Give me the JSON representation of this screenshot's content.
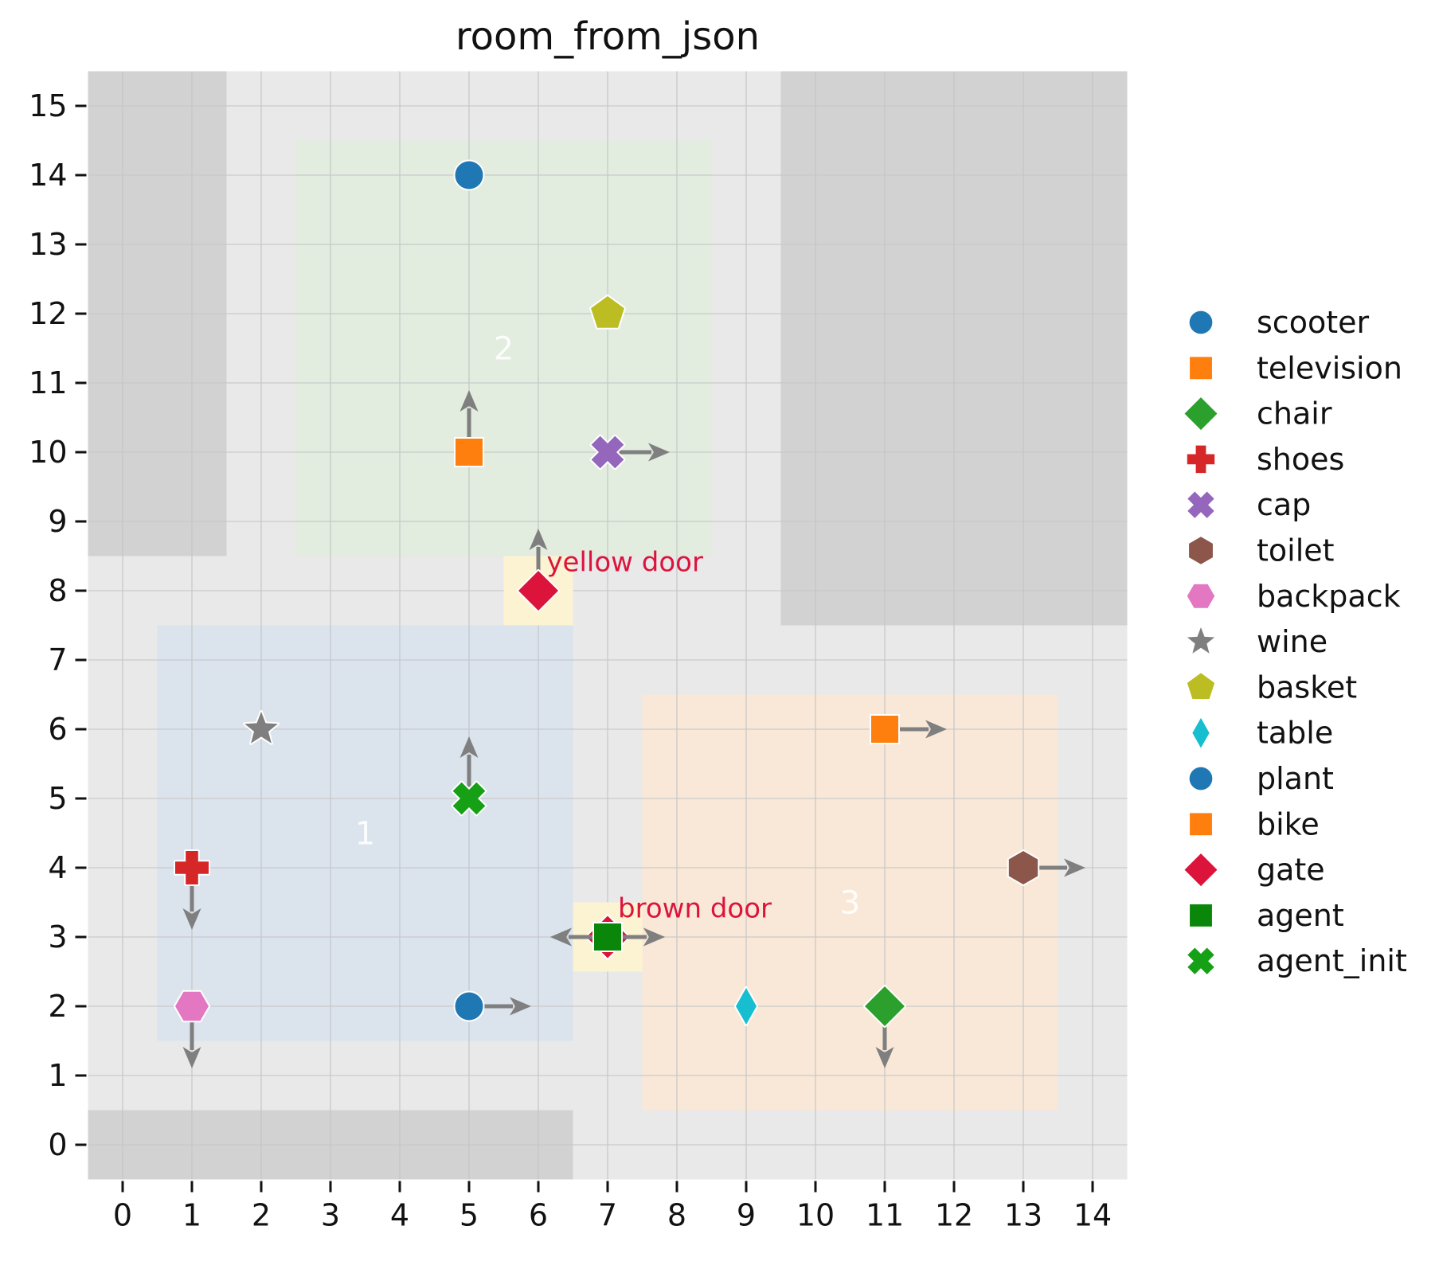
{
  "title": "room_from_json",
  "axes": {
    "xlim": [
      -0.5,
      14.5
    ],
    "ylim": [
      -0.5,
      15.5
    ],
    "xticks": [
      0,
      1,
      2,
      3,
      4,
      5,
      6,
      7,
      8,
      9,
      10,
      11,
      12,
      13,
      14
    ],
    "yticks": [
      0,
      1,
      2,
      3,
      4,
      5,
      6,
      7,
      8,
      9,
      10,
      11,
      12,
      13,
      14,
      15
    ],
    "bg_color": "#e9e9e9",
    "grid_color": "#c7c7c7",
    "tick_color": "#111111"
  },
  "chart_data": {
    "type": "scatter",
    "title": "room_from_json",
    "wall_color": "#d2d2d2",
    "door_patch_color": "#fcf3d2",
    "door_text_color": "#dc143c",
    "arrow_color": "#7f7f7f",
    "rooms": [
      {
        "id": "1",
        "x0": 0.5,
        "y0": 1.5,
        "x1": 6.5,
        "y1": 7.5,
        "color": "#dbe3ed",
        "label_x": 3.5,
        "label_y": 4.5
      },
      {
        "id": "2",
        "x0": 2.5,
        "y0": 8.5,
        "x1": 8.5,
        "y1": 14.5,
        "color": "#e2ecdf",
        "label_x": 5.5,
        "label_y": 11.5
      },
      {
        "id": "3",
        "x0": 7.5,
        "y0": 0.5,
        "x1": 13.5,
        "y1": 6.5,
        "color": "#f9e8d7",
        "label_x": 10.5,
        "label_y": 3.5
      }
    ],
    "walls": [
      {
        "x0": -0.5,
        "y0": 8.5,
        "x1": 1.5,
        "y1": 15.5
      },
      {
        "x0": 9.5,
        "y0": 7.5,
        "x1": 14.5,
        "y1": 15.5
      },
      {
        "x0": -0.5,
        "y0": -0.5,
        "x1": 6.5,
        "y1": 0.5
      }
    ],
    "doors": [
      {
        "name": "yellow door",
        "x": 6,
        "y": 8,
        "patch": [
          5.5,
          7.5,
          6.5,
          8.5
        ],
        "label_x": 6.12,
        "label_y": 8.28
      },
      {
        "name": "brown door",
        "x": 7,
        "y": 3,
        "patch": [
          6.5,
          2.5,
          7.5,
          3.5
        ],
        "label_x": 7.15,
        "label_y": 3.28
      }
    ],
    "objects": [
      {
        "name": "scooter",
        "x": 5,
        "y": 14,
        "marker": "circle",
        "color": "#1f77b4",
        "arrows": []
      },
      {
        "name": "basket",
        "x": 7,
        "y": 12,
        "marker": "pentagon",
        "color": "#bcbd22",
        "arrows": []
      },
      {
        "name": "television",
        "x": 5,
        "y": 10,
        "marker": "square",
        "color": "#ff7f0e",
        "arrows": [
          "up"
        ]
      },
      {
        "name": "cap",
        "x": 7,
        "y": 10,
        "marker": "x",
        "color": "#9467bd",
        "arrows": [
          "right"
        ]
      },
      {
        "name": "gate",
        "x": 6,
        "y": 8,
        "marker": "diamond",
        "color": "#dc143c",
        "arrows": [
          "up"
        ]
      },
      {
        "name": "wine",
        "x": 2,
        "y": 6,
        "marker": "star",
        "color": "#7f7f7f",
        "arrows": []
      },
      {
        "name": "agent_init",
        "x": 5,
        "y": 5,
        "marker": "x",
        "color": "#16a016",
        "arrows": [
          "up"
        ]
      },
      {
        "name": "shoes",
        "x": 1,
        "y": 4,
        "marker": "plus",
        "color": "#d62728",
        "arrows": [
          "down"
        ]
      },
      {
        "name": "backpack",
        "x": 1,
        "y": 2,
        "marker": "hexagon-h",
        "color": "#e377c2",
        "arrows": [
          "down"
        ]
      },
      {
        "name": "plant",
        "x": 5,
        "y": 2,
        "marker": "circle",
        "color": "#1f77b4",
        "arrows": [
          "right"
        ]
      },
      {
        "name": "agent",
        "x": 7,
        "y": 3,
        "marker": "square",
        "color": "#0a870a",
        "arrows": [
          "left",
          "right"
        ],
        "door_diamond": "#dc143c"
      },
      {
        "name": "table",
        "x": 9,
        "y": 2,
        "marker": "thin-diamond",
        "color": "#17becf",
        "arrows": []
      },
      {
        "name": "chair",
        "x": 11,
        "y": 2,
        "marker": "diamond",
        "color": "#2ca02c",
        "arrows": [
          "down"
        ]
      },
      {
        "name": "bike",
        "x": 11,
        "y": 6,
        "marker": "square",
        "color": "#ff7f0e",
        "arrows": [
          "right"
        ]
      },
      {
        "name": "toilet",
        "x": 13,
        "y": 4,
        "marker": "hexagon-v",
        "color": "#8c564b",
        "arrows": [
          "right"
        ]
      }
    ],
    "legend": [
      {
        "label": "scooter",
        "marker": "circle",
        "color": "#1f77b4"
      },
      {
        "label": "television",
        "marker": "square",
        "color": "#ff7f0e"
      },
      {
        "label": "chair",
        "marker": "diamond",
        "color": "#2ca02c"
      },
      {
        "label": "shoes",
        "marker": "plus",
        "color": "#d62728"
      },
      {
        "label": "cap",
        "marker": "x",
        "color": "#9467bd"
      },
      {
        "label": "toilet",
        "marker": "hexagon-v",
        "color": "#8c564b"
      },
      {
        "label": "backpack",
        "marker": "hexagon-h",
        "color": "#e377c2"
      },
      {
        "label": "wine",
        "marker": "star",
        "color": "#7f7f7f"
      },
      {
        "label": "basket",
        "marker": "pentagon",
        "color": "#bcbd22"
      },
      {
        "label": "table",
        "marker": "thin-diamond",
        "color": "#17becf"
      },
      {
        "label": "plant",
        "marker": "circle",
        "color": "#1f77b4"
      },
      {
        "label": "bike",
        "marker": "square",
        "color": "#ff7f0e"
      },
      {
        "label": "gate",
        "marker": "diamond",
        "color": "#dc143c"
      },
      {
        "label": "agent",
        "marker": "square",
        "color": "#0a870a"
      },
      {
        "label": "agent_init",
        "marker": "x",
        "color": "#16a016"
      }
    ]
  }
}
